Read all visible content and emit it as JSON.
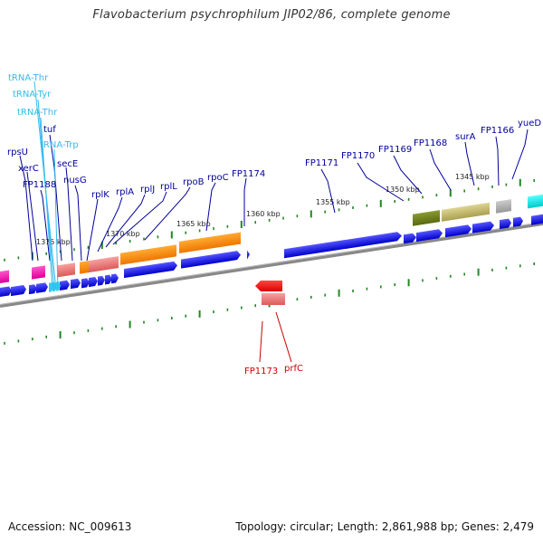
{
  "title": "Flavobacterium psychrophilum JIP02/86, complete genome",
  "footer": {
    "accession": "Accession: NC_009613",
    "summary": "Topology: circular; Length: 2,861,988 bp; Genes: 2,479"
  },
  "colors": {
    "forward_cds": "#0000dd",
    "reverse_cds": "#ee0000",
    "trna": "#33bbee",
    "rrna_orange": "#ff8800",
    "label_forward": "#000099",
    "label_trna": "#33bbee",
    "label_reverse": "#cc0000",
    "tick": "#228822",
    "backbone": "#888888"
  },
  "kbp_labels": [
    "1375 kbp",
    "1370 kbp",
    "1365 kbp",
    "1360 kbp",
    "1355 kbp",
    "1350 kbp",
    "1345 kbp"
  ],
  "forward_labels": [
    {
      "id": "rpsU",
      "text": "rpsU",
      "kind": "cds"
    },
    {
      "id": "xerC",
      "text": "xerC",
      "kind": "cds"
    },
    {
      "id": "FP1188",
      "text": "FP1188",
      "kind": "cds"
    },
    {
      "id": "tRNA-Thr-1",
      "text": "tRNA-Thr",
      "kind": "trna"
    },
    {
      "id": "tRNA-Tyr",
      "text": "tRNA-Tyr",
      "kind": "trna"
    },
    {
      "id": "tRNA-Thr-2",
      "text": "tRNA-Thr",
      "kind": "trna"
    },
    {
      "id": "tuf",
      "text": "tuf",
      "kind": "cds"
    },
    {
      "id": "tRNA-Trp",
      "text": "tRNA-Trp",
      "kind": "trna"
    },
    {
      "id": "secE",
      "text": "secE",
      "kind": "cds"
    },
    {
      "id": "nusG",
      "text": "nusG",
      "kind": "cds"
    },
    {
      "id": "rplK",
      "text": "rplK",
      "kind": "cds"
    },
    {
      "id": "rplA",
      "text": "rplA",
      "kind": "cds"
    },
    {
      "id": "rplJ",
      "text": "rplJ",
      "kind": "cds"
    },
    {
      "id": "rplL",
      "text": "rplL",
      "kind": "cds"
    },
    {
      "id": "rpoB",
      "text": "rpoB",
      "kind": "cds"
    },
    {
      "id": "rpoC",
      "text": "rpoC",
      "kind": "cds"
    },
    {
      "id": "FP1174",
      "text": "FP1174",
      "kind": "cds"
    },
    {
      "id": "FP1171",
      "text": "FP1171",
      "kind": "cds"
    },
    {
      "id": "FP1170",
      "text": "FP1170",
      "kind": "cds"
    },
    {
      "id": "FP1169",
      "text": "FP1169",
      "kind": "cds"
    },
    {
      "id": "FP1168",
      "text": "FP1168",
      "kind": "cds"
    },
    {
      "id": "surA",
      "text": "surA",
      "kind": "cds"
    },
    {
      "id": "FP1166",
      "text": "FP1166",
      "kind": "cds"
    },
    {
      "id": "yueD",
      "text": "yueD",
      "kind": "cds"
    }
  ],
  "reverse_labels": [
    {
      "id": "FP1173",
      "text": "FP1173",
      "kind": "cds"
    },
    {
      "id": "prfC",
      "text": "prfC",
      "kind": "cds"
    }
  ]
}
